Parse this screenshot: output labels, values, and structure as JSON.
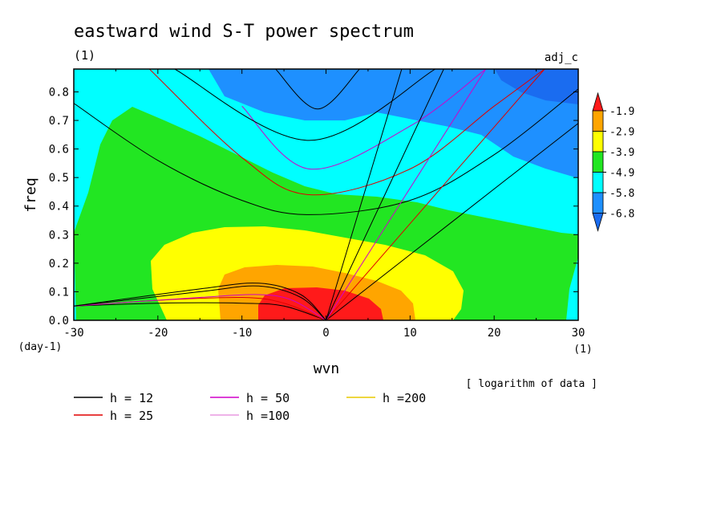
{
  "chart_data": {
    "type": "heatmap",
    "title": "eastward wind S-T power spectrum",
    "subtitle": "(1)",
    "run_label": "adj_c",
    "xlabel": "wvn",
    "ylabel": "freq",
    "x_unit": "(1)",
    "y_unit": "(day-1)",
    "xlim": [
      -30,
      30
    ],
    "ylim": [
      0,
      0.88
    ],
    "x_ticks": [
      -30,
      -20,
      -10,
      0,
      10,
      20,
      30
    ],
    "x_tick_labels": [
      "-30",
      "-20",
      "-10",
      "0",
      "10",
      "20",
      "30"
    ],
    "y_ticks": [
      0,
      0.1,
      0.2,
      0.3,
      0.4,
      0.5,
      0.6,
      0.7,
      0.8
    ],
    "y_tick_labels": [
      "0.0",
      "0.1",
      "0.2",
      "0.3",
      "0.4",
      "0.5",
      "0.6",
      "0.7",
      "0.8"
    ],
    "note": "[ logarithm of data ]",
    "colorbar": {
      "levels": [
        -1.9,
        -2.9,
        -3.9,
        -4.9,
        -5.8,
        -6.8
      ],
      "level_labels": [
        "-1.9",
        "-2.9",
        "-3.9",
        "-4.9",
        "-5.8",
        "-6.8"
      ],
      "colors": [
        "#ff1a1a",
        "#ffa500",
        "#ffff00",
        "#22e622",
        "#00ffff",
        "#1e90ff",
        "#1a6cf0"
      ]
    },
    "filled_regions": [
      {
        "level": "< -5.8",
        "color": "#1e90ff",
        "region": "high frequency, positive wavenumbers and upper centre"
      },
      {
        "level": "-5.8 to -4.9",
        "color": "#00ffff",
        "region": "background"
      },
      {
        "level": "-4.9 to -3.9",
        "color": "#22e622",
        "region": "broad low-frequency band, peak near freq 0.68 at wvn -24"
      },
      {
        "level": "-3.9 to -2.9",
        "color": "#ffff00",
        "region": "wvn -21 to 16, freq below 0.32"
      },
      {
        "level": "-2.9 to -1.9",
        "color": "#ffa500",
        "region": "wvn -13 to 10, freq below 0.19"
      },
      {
        "level": "> -1.9",
        "color": "#ff1a1a",
        "region": "wvn -8 to 7, freq below 0.12"
      }
    ],
    "series": [
      {
        "name": "h = 12",
        "color": "#000000"
      },
      {
        "name": "h = 25",
        "color": "#e00000"
      },
      {
        "name": "h = 50",
        "color": "#d000c8"
      },
      {
        "name": "h =100",
        "color": "#e89ae0"
      },
      {
        "name": "h =200",
        "color": "#e8c800"
      }
    ],
    "dispersion_curves": [
      {
        "series": "h = 12",
        "kind": "gravity n=1",
        "points": [
          [
            -30,
            0.76
          ],
          [
            -20,
            0.56
          ],
          [
            -10,
            0.42
          ],
          [
            -2,
            0.37
          ],
          [
            10,
            0.42
          ],
          [
            20,
            0.58
          ],
          [
            30,
            0.81
          ]
        ]
      },
      {
        "series": "h = 12",
        "kind": "kelvin",
        "points": [
          [
            0,
            0
          ],
          [
            30,
            0.69
          ]
        ]
      },
      {
        "series": "h = 12",
        "kind": "rossby",
        "points": [
          [
            -30,
            0.05
          ],
          [
            -20,
            0.06
          ],
          [
            -10,
            0.06
          ],
          [
            -5,
            0.05
          ],
          [
            0,
            0
          ]
        ]
      },
      {
        "series": "h = 25",
        "kind": "gravity n=1",
        "points": [
          [
            -21,
            0.88
          ],
          [
            -10,
            0.57
          ],
          [
            -2,
            0.44
          ],
          [
            10,
            0.53
          ],
          [
            20,
            0.75
          ],
          [
            26,
            0.88
          ]
        ]
      },
      {
        "series": "h = 25",
        "kind": "kelvin",
        "points": [
          [
            0,
            0
          ],
          [
            26,
            0.88
          ]
        ]
      },
      {
        "series": "h = 25",
        "kind": "rossby",
        "points": [
          [
            -30,
            0.05
          ],
          [
            -20,
            0.07
          ],
          [
            -10,
            0.08
          ],
          [
            -5,
            0.06
          ],
          [
            0,
            0
          ]
        ]
      },
      {
        "series": "h = 50",
        "kind": "gravity n=1",
        "points": [
          [
            -10,
            0.75
          ],
          [
            -2,
            0.53
          ],
          [
            10,
            0.68
          ],
          [
            19,
            0.88
          ]
        ]
      },
      {
        "series": "h = 50",
        "kind": "kelvin",
        "points": [
          [
            0,
            0
          ],
          [
            19,
            0.88
          ]
        ]
      },
      {
        "series": "h = 50",
        "kind": "rossby",
        "points": [
          [
            -30,
            0.05
          ],
          [
            -15,
            0.08
          ],
          [
            -8,
            0.09
          ],
          [
            -4,
            0.07
          ],
          [
            0,
            0
          ]
        ]
      },
      {
        "series": "h = 100",
        "kind": "gravity n=1",
        "points": [
          [
            -18,
            0.88
          ],
          [
            -2,
            0.63
          ],
          [
            13,
            0.88
          ]
        ]
      },
      {
        "series": "h = 100",
        "kind": "kelvin",
        "points": [
          [
            0,
            0
          ],
          [
            14,
            0.88
          ]
        ]
      },
      {
        "series": "h = 100",
        "kind": "rossby",
        "points": [
          [
            -30,
            0.05
          ],
          [
            -15,
            0.1
          ],
          [
            -8,
            0.12
          ],
          [
            -3,
            0.08
          ],
          [
            0,
            0
          ]
        ]
      },
      {
        "series": "h = 200",
        "kind": "gravity n=1",
        "points": [
          [
            -6,
            0.88
          ],
          [
            -1,
            0.74
          ],
          [
            4,
            0.88
          ]
        ]
      },
      {
        "series": "h = 200",
        "kind": "kelvin",
        "points": [
          [
            0,
            0
          ],
          [
            9,
            0.88
          ]
        ]
      },
      {
        "series": "h = 200",
        "kind": "rossby",
        "points": [
          [
            -30,
            0.05
          ],
          [
            -15,
            0.11
          ],
          [
            -8,
            0.13
          ],
          [
            -3,
            0.09
          ],
          [
            0,
            0
          ]
        ]
      }
    ]
  }
}
